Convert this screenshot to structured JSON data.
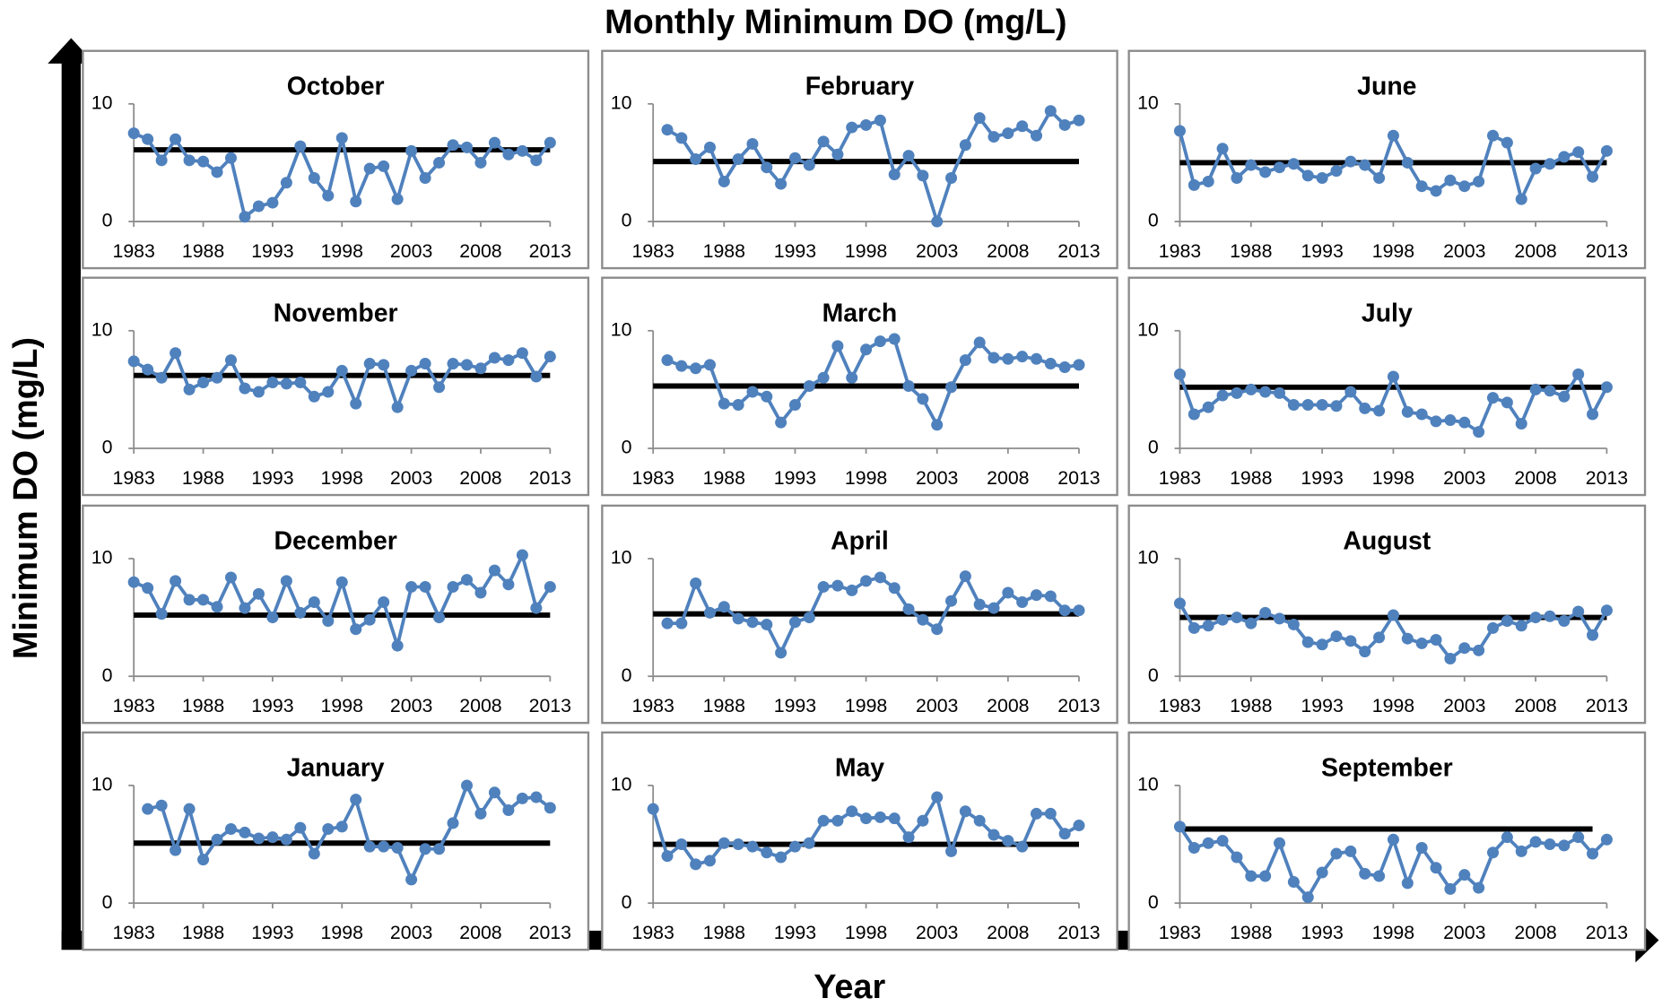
{
  "figure": {
    "title": "Monthly Minimum DO (mg/L)",
    "xlabel": "Year",
    "ylabel": "Minimum DO (mg/L)"
  },
  "chart_data": [
    {
      "type": "line",
      "title": "October",
      "x": [
        1983,
        1984,
        1985,
        1986,
        1987,
        1988,
        1989,
        1990,
        1991,
        1992,
        1993,
        1994,
        1995,
        1996,
        1997,
        1998,
        1999,
        2000,
        2001,
        2002,
        2003,
        2004,
        2005,
        2006,
        2007,
        2008,
        2009,
        2010,
        2011,
        2012,
        2013
      ],
      "series": [
        {
          "color": "#4f81bd",
          "values": [
            7.5,
            7.0,
            5.2,
            7.0,
            5.2,
            5.1,
            4.2,
            5.4,
            0.4,
            1.3,
            1.6,
            3.3,
            6.4,
            3.7,
            2.2,
            7.1,
            1.7,
            4.5,
            4.7,
            1.9,
            6.0,
            3.7,
            5.0,
            6.5,
            6.3,
            5.0,
            6.7,
            5.7,
            6.0,
            5.2,
            6.7
          ]
        }
      ],
      "hline": 6.1,
      "hline_range": [
        1983,
        2013
      ],
      "hline_color": "#000000",
      "xlim": [
        1983,
        2013
      ],
      "xticks": [
        1983,
        1988,
        1993,
        1998,
        2003,
        2008,
        2013
      ],
      "ylim": [
        0,
        10
      ],
      "yticks": [
        0,
        10
      ]
    },
    {
      "type": "line",
      "title": "February",
      "x": [
        1983,
        1984,
        1985,
        1986,
        1987,
        1988,
        1989,
        1990,
        1991,
        1992,
        1993,
        1994,
        1995,
        1996,
        1997,
        1998,
        1999,
        2000,
        2001,
        2002,
        2003,
        2004,
        2005,
        2006,
        2007,
        2008,
        2009,
        2010,
        2011,
        2012,
        2013
      ],
      "series": [
        {
          "color": "#4f81bd",
          "values": [
            null,
            7.8,
            7.1,
            5.3,
            6.3,
            3.4,
            5.3,
            6.6,
            4.6,
            3.2,
            5.4,
            4.8,
            6.8,
            5.7,
            8.0,
            8.2,
            8.6,
            4.0,
            5.6,
            3.9,
            0.0,
            3.7,
            6.5,
            8.8,
            7.2,
            7.5,
            8.1,
            7.3,
            9.4,
            8.2,
            8.6
          ]
        }
      ],
      "hline": 5.1,
      "hline_range": [
        1983,
        2013
      ],
      "hline_color": "#000000",
      "xlim": [
        1983,
        2013
      ],
      "xticks": [
        1983,
        1988,
        1993,
        1998,
        2003,
        2008,
        2013
      ],
      "ylim": [
        0,
        10
      ],
      "yticks": [
        0,
        10
      ]
    },
    {
      "type": "line",
      "title": "June",
      "x": [
        1983,
        1984,
        1985,
        1986,
        1987,
        1988,
        1989,
        1990,
        1991,
        1992,
        1993,
        1994,
        1995,
        1996,
        1997,
        1998,
        1999,
        2000,
        2001,
        2002,
        2003,
        2004,
        2005,
        2006,
        2007,
        2008,
        2009,
        2010,
        2011,
        2012,
        2013
      ],
      "series": [
        {
          "color": "#4f81bd",
          "values": [
            7.7,
            3.1,
            3.4,
            6.2,
            3.7,
            4.8,
            4.2,
            4.6,
            4.9,
            3.9,
            3.7,
            4.3,
            5.1,
            4.8,
            3.7,
            7.3,
            5.0,
            3.0,
            2.6,
            3.5,
            3.0,
            3.4,
            7.3,
            6.7,
            1.9,
            4.5,
            4.9,
            5.5,
            5.9,
            3.8,
            6.0
          ]
        }
      ],
      "hline": 5.0,
      "hline_range": [
        1983,
        2013
      ],
      "hline_color": "#000000",
      "xlim": [
        1983,
        2013
      ],
      "xticks": [
        1983,
        1988,
        1993,
        1998,
        2003,
        2008,
        2013
      ],
      "ylim": [
        0,
        10
      ],
      "yticks": [
        0,
        10
      ]
    },
    {
      "type": "line",
      "title": "November",
      "x": [
        1983,
        1984,
        1985,
        1986,
        1987,
        1988,
        1989,
        1990,
        1991,
        1992,
        1993,
        1994,
        1995,
        1996,
        1997,
        1998,
        1999,
        2000,
        2001,
        2002,
        2003,
        2004,
        2005,
        2006,
        2007,
        2008,
        2009,
        2010,
        2011,
        2012,
        2013
      ],
      "series": [
        {
          "color": "#4f81bd",
          "values": [
            7.4,
            6.7,
            6.0,
            8.1,
            5.0,
            5.6,
            6.0,
            7.5,
            5.1,
            4.8,
            5.6,
            5.5,
            5.6,
            4.4,
            4.8,
            6.6,
            3.8,
            7.2,
            7.1,
            3.5,
            6.6,
            7.2,
            5.2,
            7.2,
            7.1,
            6.8,
            7.7,
            7.5,
            8.1,
            6.1,
            7.8
          ]
        }
      ],
      "hline": 6.2,
      "hline_range": [
        1983,
        2013
      ],
      "hline_color": "#000000",
      "xlim": [
        1983,
        2013
      ],
      "xticks": [
        1983,
        1988,
        1993,
        1998,
        2003,
        2008,
        2013
      ],
      "ylim": [
        0,
        10
      ],
      "yticks": [
        0,
        10
      ]
    },
    {
      "type": "line",
      "title": "March",
      "x": [
        1983,
        1984,
        1985,
        1986,
        1987,
        1988,
        1989,
        1990,
        1991,
        1992,
        1993,
        1994,
        1995,
        1996,
        1997,
        1998,
        1999,
        2000,
        2001,
        2002,
        2003,
        2004,
        2005,
        2006,
        2007,
        2008,
        2009,
        2010,
        2011,
        2012,
        2013
      ],
      "series": [
        {
          "color": "#4f81bd",
          "values": [
            null,
            7.5,
            7.0,
            6.8,
            7.1,
            3.8,
            3.7,
            4.8,
            4.4,
            2.2,
            3.7,
            5.3,
            6.0,
            8.7,
            6.0,
            8.4,
            9.1,
            9.3,
            5.3,
            4.2,
            2.0,
            5.2,
            7.5,
            9.0,
            7.7,
            7.6,
            7.8,
            7.6,
            7.2,
            6.9,
            7.1
          ]
        }
      ],
      "hline": 5.3,
      "hline_range": [
        1983,
        2013
      ],
      "hline_color": "#000000",
      "xlim": [
        1983,
        2013
      ],
      "xticks": [
        1983,
        1988,
        1993,
        1998,
        2003,
        2008,
        2013
      ],
      "ylim": [
        0,
        10
      ],
      "yticks": [
        0,
        10
      ]
    },
    {
      "type": "line",
      "title": "July",
      "x": [
        1983,
        1984,
        1985,
        1986,
        1987,
        1988,
        1989,
        1990,
        1991,
        1992,
        1993,
        1994,
        1995,
        1996,
        1997,
        1998,
        1999,
        2000,
        2001,
        2002,
        2003,
        2004,
        2005,
        2006,
        2007,
        2008,
        2009,
        2010,
        2011,
        2012,
        2013
      ],
      "series": [
        {
          "color": "#4f81bd",
          "values": [
            6.3,
            2.9,
            3.5,
            4.5,
            4.7,
            5.0,
            4.8,
            4.7,
            3.7,
            3.7,
            3.7,
            3.6,
            4.8,
            3.4,
            3.2,
            6.1,
            3.1,
            2.9,
            2.3,
            2.4,
            2.2,
            1.4,
            4.3,
            3.9,
            2.1,
            5.0,
            4.9,
            4.4,
            6.3,
            2.9,
            5.2
          ]
        }
      ],
      "hline": 5.2,
      "hline_range": [
        1983,
        2013
      ],
      "hline_color": "#000000",
      "xlim": [
        1983,
        2013
      ],
      "xticks": [
        1983,
        1988,
        1993,
        1998,
        2003,
        2008,
        2013
      ],
      "ylim": [
        0,
        10
      ],
      "yticks": [
        0,
        10
      ]
    },
    {
      "type": "line",
      "title": "December",
      "x": [
        1983,
        1984,
        1985,
        1986,
        1987,
        1988,
        1989,
        1990,
        1991,
        1992,
        1993,
        1994,
        1995,
        1996,
        1997,
        1998,
        1999,
        2000,
        2001,
        2002,
        2003,
        2004,
        2005,
        2006,
        2007,
        2008,
        2009,
        2010,
        2011,
        2012,
        2013
      ],
      "series": [
        {
          "color": "#4f81bd",
          "values": [
            8.0,
            7.5,
            5.3,
            8.1,
            6.5,
            6.5,
            5.9,
            8.4,
            5.8,
            7.0,
            5.0,
            8.1,
            5.4,
            6.3,
            4.7,
            8.0,
            4.0,
            4.8,
            6.3,
            2.6,
            7.6,
            7.6,
            5.0,
            7.6,
            8.2,
            7.1,
            9.0,
            7.8,
            10.3,
            5.8,
            7.6
          ]
        }
      ],
      "hline": 5.2,
      "hline_range": [
        1983,
        2013
      ],
      "hline_color": "#000000",
      "xlim": [
        1983,
        2013
      ],
      "xticks": [
        1983,
        1988,
        1993,
        1998,
        2003,
        2008,
        2013
      ],
      "ylim": [
        0,
        10
      ],
      "yticks": [
        0,
        10
      ]
    },
    {
      "type": "line",
      "title": "April",
      "x": [
        1983,
        1984,
        1985,
        1986,
        1987,
        1988,
        1989,
        1990,
        1991,
        1992,
        1993,
        1994,
        1995,
        1996,
        1997,
        1998,
        1999,
        2000,
        2001,
        2002,
        2003,
        2004,
        2005,
        2006,
        2007,
        2008,
        2009,
        2010,
        2011,
        2012,
        2013
      ],
      "series": [
        {
          "color": "#4f81bd",
          "values": [
            null,
            4.5,
            4.5,
            7.9,
            5.4,
            5.9,
            4.9,
            4.6,
            4.4,
            2.0,
            4.6,
            5.0,
            7.6,
            7.7,
            7.3,
            8.1,
            8.4,
            7.5,
            5.7,
            4.8,
            4.0,
            6.4,
            8.5,
            6.1,
            5.8,
            7.1,
            6.3,
            6.9,
            6.8,
            5.6,
            5.6
          ]
        }
      ],
      "hline": 5.3,
      "hline_range": [
        1983,
        2013
      ],
      "hline_color": "#000000",
      "xlim": [
        1983,
        2013
      ],
      "xticks": [
        1983,
        1988,
        1993,
        1998,
        2003,
        2008,
        2013
      ],
      "ylim": [
        0,
        10
      ],
      "yticks": [
        0,
        10
      ]
    },
    {
      "type": "line",
      "title": "August",
      "x": [
        1983,
        1984,
        1985,
        1986,
        1987,
        1988,
        1989,
        1990,
        1991,
        1992,
        1993,
        1994,
        1995,
        1996,
        1997,
        1998,
        1999,
        2000,
        2001,
        2002,
        2003,
        2004,
        2005,
        2006,
        2007,
        2008,
        2009,
        2010,
        2011,
        2012,
        2013
      ],
      "series": [
        {
          "color": "#4f81bd",
          "values": [
            6.2,
            4.1,
            4.3,
            4.8,
            5.0,
            4.5,
            5.4,
            4.9,
            4.4,
            2.9,
            2.7,
            3.4,
            3.0,
            2.1,
            3.3,
            5.2,
            3.2,
            2.8,
            3.1,
            1.5,
            2.4,
            2.2,
            4.1,
            4.7,
            4.3,
            5.0,
            5.1,
            4.7,
            5.5,
            3.5,
            5.6
          ]
        }
      ],
      "hline": 5.0,
      "hline_range": [
        1983,
        2013
      ],
      "hline_color": "#000000",
      "xlim": [
        1983,
        2013
      ],
      "xticks": [
        1983,
        1988,
        1993,
        1998,
        2003,
        2008,
        2013
      ],
      "ylim": [
        0,
        10
      ],
      "yticks": [
        0,
        10
      ]
    },
    {
      "type": "line",
      "title": "January",
      "x": [
        1983,
        1984,
        1985,
        1986,
        1987,
        1988,
        1989,
        1990,
        1991,
        1992,
        1993,
        1994,
        1995,
        1996,
        1997,
        1998,
        1999,
        2000,
        2001,
        2002,
        2003,
        2004,
        2005,
        2006,
        2007,
        2008,
        2009,
        2010,
        2011,
        2012,
        2013
      ],
      "series": [
        {
          "color": "#4f81bd",
          "values": [
            null,
            8.0,
            8.3,
            4.5,
            8.0,
            3.7,
            5.4,
            6.3,
            6.0,
            5.5,
            5.6,
            5.4,
            6.4,
            4.2,
            6.3,
            6.5,
            8.8,
            4.8,
            4.8,
            4.7,
            2.0,
            4.6,
            4.6,
            6.8,
            10.0,
            7.6,
            9.4,
            7.9,
            8.9,
            9.0,
            8.1
          ]
        }
      ],
      "hline": 5.1,
      "hline_range": [
        1983,
        2013
      ],
      "hline_color": "#000000",
      "xlim": [
        1983,
        2013
      ],
      "xticks": [
        1983,
        1988,
        1993,
        1998,
        2003,
        2008,
        2013
      ],
      "ylim": [
        0,
        10
      ],
      "yticks": [
        0,
        10
      ]
    },
    {
      "type": "line",
      "title": "May",
      "x": [
        1983,
        1984,
        1985,
        1986,
        1987,
        1988,
        1989,
        1990,
        1991,
        1992,
        1993,
        1994,
        1995,
        1996,
        1997,
        1998,
        1999,
        2000,
        2001,
        2002,
        2003,
        2004,
        2005,
        2006,
        2007,
        2008,
        2009,
        2010,
        2011,
        2012,
        2013
      ],
      "series": [
        {
          "color": "#4f81bd",
          "values": [
            8.0,
            4.0,
            5.0,
            3.3,
            3.6,
            5.1,
            5.0,
            4.8,
            4.3,
            3.9,
            4.8,
            5.1,
            7.0,
            7.0,
            7.8,
            7.2,
            7.3,
            7.2,
            5.6,
            7.0,
            9.0,
            4.4,
            7.8,
            7.0,
            5.8,
            5.3,
            4.8,
            7.6,
            7.6,
            5.9,
            6.6
          ]
        }
      ],
      "hline": 5.0,
      "hline_range": [
        1983,
        2013
      ],
      "hline_color": "#000000",
      "xlim": [
        1983,
        2013
      ],
      "xticks": [
        1983,
        1988,
        1993,
        1998,
        2003,
        2008,
        2013
      ],
      "ylim": [
        0,
        10
      ],
      "yticks": [
        0,
        10
      ]
    },
    {
      "type": "line",
      "title": "September",
      "x": [
        1983,
        1984,
        1985,
        1986,
        1987,
        1988,
        1989,
        1990,
        1991,
        1992,
        1993,
        1994,
        1995,
        1996,
        1997,
        1998,
        1999,
        2000,
        2001,
        2002,
        2003,
        2004,
        2005,
        2006,
        2007,
        2008,
        2009,
        2010,
        2011,
        2012,
        2013
      ],
      "series": [
        {
          "color": "#4f81bd",
          "values": [
            6.5,
            4.7,
            5.1,
            5.3,
            3.9,
            2.3,
            2.3,
            5.1,
            1.8,
            0.5,
            2.6,
            4.2,
            4.4,
            2.5,
            2.3,
            5.4,
            1.7,
            4.7,
            3.0,
            1.2,
            2.4,
            1.3,
            4.3,
            5.6,
            4.4,
            5.2,
            5.0,
            4.9,
            5.6,
            4.2,
            5.4
          ]
        }
      ],
      "hline": 6.3,
      "hline_range": [
        1983,
        2012
      ],
      "hline_color": "#000000",
      "xlim": [
        1983,
        2013
      ],
      "xticks": [
        1983,
        1988,
        1993,
        1998,
        2003,
        2008,
        2013
      ],
      "ylim": [
        0,
        10
      ],
      "yticks": [
        0,
        10
      ]
    }
  ]
}
